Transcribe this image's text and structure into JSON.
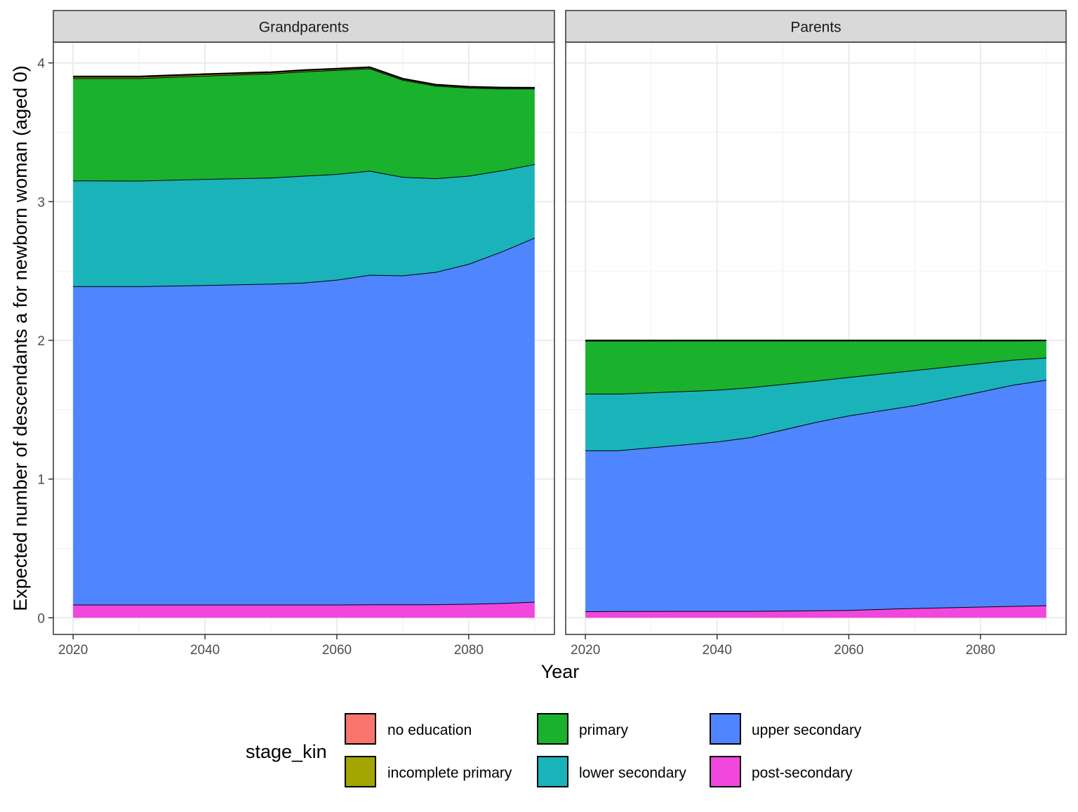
{
  "chart_data": {
    "type": "area",
    "stacked": true,
    "xlabel": "Year",
    "ylabel": "Expected number of descendants a for newborn woman (aged 0)",
    "xlim": [
      2017,
      2093
    ],
    "ylim": [
      -0.12,
      4.15
    ],
    "x_ticks": [
      "2020",
      "2040",
      "2060",
      "2080"
    ],
    "x_tick_values": [
      2020,
      2040,
      2060,
      2080
    ],
    "y_ticks": [
      "0",
      "1",
      "2",
      "3",
      "4"
    ],
    "y_tick_values": [
      0,
      1,
      2,
      3,
      4
    ],
    "grid": true,
    "theme": "bw",
    "legend": {
      "title": "stage_kin",
      "position": "bottom",
      "entries": [
        {
          "label": "no education",
          "color": "#F8766D"
        },
        {
          "label": "incomplete primary",
          "color": "#A3A500"
        },
        {
          "label": "primary",
          "color": "#1AB12D"
        },
        {
          "label": "lower secondary",
          "color": "#1AB3BA"
        },
        {
          "label": "upper secondary",
          "color": "#4F85FF"
        },
        {
          "label": "post-secondary",
          "color": "#F147DD"
        }
      ]
    },
    "stack_order_bottom_to_top": [
      "post-secondary",
      "upper secondary",
      "lower secondary",
      "primary",
      "incomplete primary",
      "no education"
    ],
    "panels": [
      {
        "title": "Grandparents",
        "x": [
          2020,
          2030,
          2040,
          2050,
          2055,
          2060,
          2065,
          2070,
          2075,
          2080,
          2085,
          2090
        ],
        "series": [
          {
            "name": "post-secondary",
            "values": [
              0.095,
              0.095,
              0.095,
              0.095,
              0.095,
              0.095,
              0.096,
              0.096,
              0.097,
              0.1,
              0.106,
              0.115
            ]
          },
          {
            "name": "upper secondary",
            "values": [
              2.295,
              2.295,
              2.303,
              2.313,
              2.321,
              2.342,
              2.376,
              2.372,
              2.396,
              2.451,
              2.534,
              2.625
            ]
          },
          {
            "name": "lower secondary",
            "values": [
              0.762,
              0.761,
              0.765,
              0.765,
              0.77,
              0.762,
              0.75,
              0.71,
              0.675,
              0.635,
              0.585,
              0.53
            ]
          },
          {
            "name": "primary",
            "values": [
              0.738,
              0.739,
              0.745,
              0.75,
              0.752,
              0.75,
              0.738,
              0.7,
              0.667,
              0.635,
              0.59,
              0.545
            ]
          },
          {
            "name": "incomplete primary",
            "values": [
              0.01,
              0.01,
              0.01,
              0.009,
              0.009,
              0.008,
              0.008,
              0.007,
              0.007,
              0.006,
              0.006,
              0.005
            ]
          },
          {
            "name": "no education",
            "values": [
              0.003,
              0.003,
              0.002,
              0.002,
              0.002,
              0.002,
              0.002,
              0.002,
              0.002,
              0.002,
              0.002,
              0.002
            ]
          }
        ]
      },
      {
        "title": "Parents",
        "x": [
          2020,
          2025,
          2040,
          2045,
          2055,
          2060,
          2070,
          2080,
          2085,
          2090
        ],
        "series": [
          {
            "name": "post-secondary",
            "values": [
              0.047,
              0.048,
              0.049,
              0.049,
              0.053,
              0.056,
              0.07,
              0.08,
              0.085,
              0.09
            ]
          },
          {
            "name": "upper secondary",
            "values": [
              1.16,
              1.159,
              1.221,
              1.252,
              1.358,
              1.402,
              1.462,
              1.55,
              1.595,
              1.625
            ]
          },
          {
            "name": "lower secondary",
            "values": [
              0.408,
              0.408,
              0.373,
              0.36,
              0.298,
              0.277,
              0.253,
              0.205,
              0.18,
              0.16
            ]
          },
          {
            "name": "primary",
            "values": [
              0.382,
              0.382,
              0.355,
              0.337,
              0.289,
              0.263,
              0.213,
              0.163,
              0.138,
              0.124
            ]
          },
          {
            "name": "incomplete primary",
            "values": [
              0.002,
              0.002,
              0.001,
              0.001,
              0.001,
              0.001,
              0.001,
              0.001,
              0.001,
              0.001
            ]
          },
          {
            "name": "no education",
            "values": [
              0.001,
              0.001,
              0.001,
              0.001,
              0.001,
              0.001,
              0.001,
              0.001,
              0.001,
              0.0
            ]
          }
        ]
      }
    ]
  }
}
